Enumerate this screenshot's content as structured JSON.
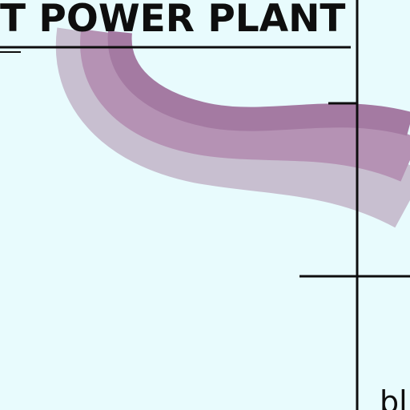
{
  "title": "T POWER PLANT",
  "corner_label": "bl",
  "colors": {
    "background": "#e8fbfd",
    "band_outer": "#c8bfd0",
    "band_mid": "#b592b4",
    "band_inner": "#a47aa2",
    "line": "#0e0e0e"
  }
}
